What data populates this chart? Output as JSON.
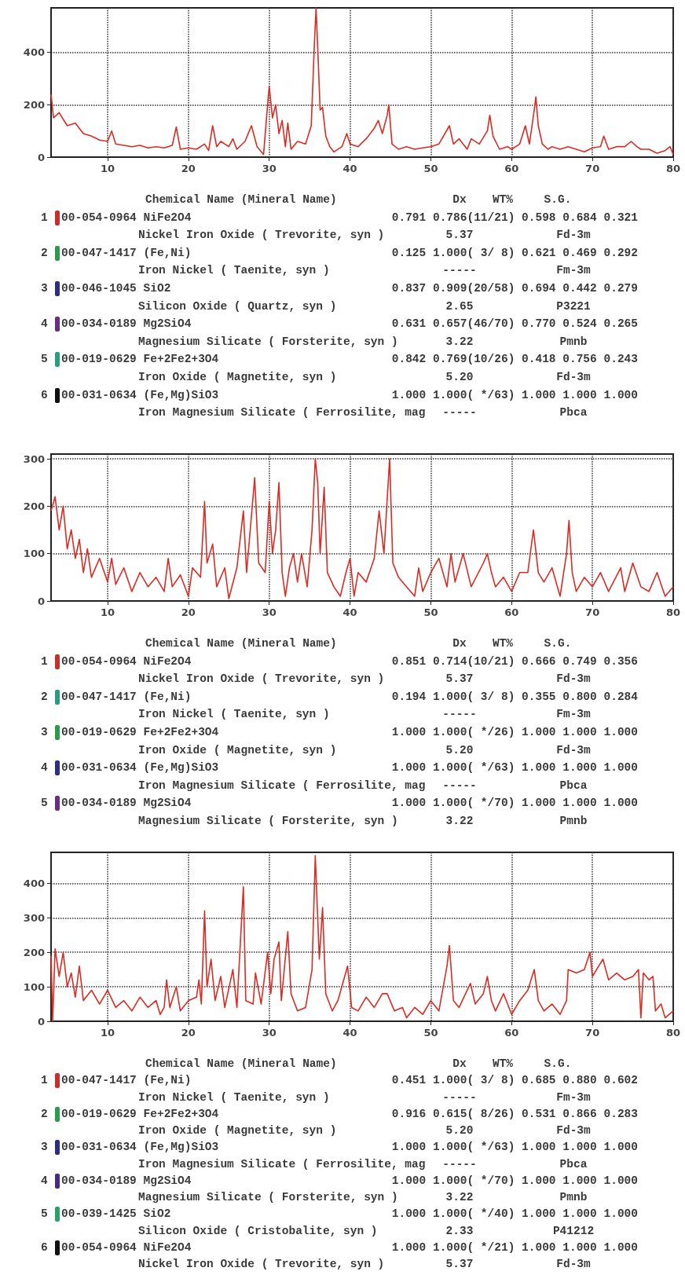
{
  "chart_data": [
    {
      "type": "line",
      "color": "#dd2a22",
      "grid": true,
      "xlim": [
        3,
        80
      ],
      "xticks": [
        10,
        20,
        30,
        40,
        50,
        60,
        70,
        80
      ],
      "ylim": [
        0,
        570
      ],
      "yticks": [
        0,
        200,
        400
      ],
      "x": [
        3,
        3.3,
        4,
        5,
        6,
        7,
        8,
        9,
        10,
        10.5,
        11,
        12,
        13,
        14,
        15,
        16,
        17,
        18,
        18.5,
        19,
        20,
        21,
        22,
        22.5,
        23,
        23.5,
        24,
        25,
        25.5,
        26,
        27,
        27.8,
        28.5,
        29.3,
        29.8,
        30,
        30.4,
        30.8,
        31.2,
        31.6,
        32,
        32.3,
        32.7,
        33.5,
        34.5,
        35.2,
        35.6,
        35.8,
        36,
        36.3,
        36.6,
        37,
        37.5,
        38,
        39,
        39.6,
        40,
        41,
        42,
        43,
        43.5,
        44,
        44.6,
        44.8,
        45.2,
        46,
        47,
        48,
        49,
        50,
        51,
        52.3,
        52.8,
        53.5,
        54.5,
        55,
        56,
        57,
        57.3,
        57.7,
        58.5,
        59.5,
        60,
        61,
        61.7,
        62.2,
        62.8,
        63,
        63.3,
        63.8,
        64.5,
        65,
        66,
        67,
        68,
        69,
        70,
        71,
        71.4,
        72,
        73,
        74,
        74.8,
        75.5,
        76,
        77,
        78,
        79,
        79.6,
        80
      ],
      "values": [
        240,
        150,
        170,
        120,
        130,
        90,
        80,
        65,
        60,
        100,
        50,
        45,
        40,
        45,
        35,
        40,
        35,
        45,
        115,
        30,
        35,
        30,
        50,
        25,
        120,
        40,
        60,
        40,
        70,
        30,
        60,
        120,
        40,
        10,
        200,
        270,
        150,
        200,
        90,
        140,
        40,
        130,
        30,
        60,
        50,
        120,
        440,
        570,
        420,
        180,
        190,
        80,
        40,
        20,
        40,
        90,
        50,
        40,
        70,
        110,
        140,
        90,
        160,
        200,
        50,
        30,
        40,
        30,
        35,
        40,
        50,
        120,
        50,
        70,
        30,
        70,
        50,
        100,
        160,
        80,
        30,
        40,
        30,
        50,
        120,
        50,
        180,
        230,
        120,
        50,
        30,
        40,
        30,
        40,
        30,
        20,
        35,
        40,
        80,
        30,
        40,
        40,
        60,
        40,
        30,
        30,
        15,
        25,
        40,
        10
      ]
    },
    {
      "type": "other",
      "colors": [
        "#c4302a",
        "#2a9a4c",
        "#2b2f7e",
        "#6b2d84",
        "#2a9d80",
        "#111111"
      ],
      "annotations": [
        "Chemical Name (Mineral Name)  Dx  WT%  S.G.",
        "1  00-054-0964 NiFe2O4  0.791 0.786(11/21) 0.598 0.684 0.321",
        "Nickel Iron Oxide ( Trevorite, syn )  5.37  Fd-3m",
        "2  00-047-1417 (Fe,Ni)  0.125 1.000( 3/ 8) 0.621 0.469 0.292",
        "Iron Nickel ( Taenite, syn )  -----  Fm-3m",
        "3  00-046-1045 SiO2  0.837 0.909(20/58) 0.694 0.442 0.279",
        "Silicon Oxide ( Quartz, syn )  2.65  P3221",
        "4  00-034-0189 Mg2SiO4  0.631 0.657(46/70) 0.770 0.524 0.265",
        "Magnesium Silicate ( Forsterite, syn )  3.22  Pmnb",
        "5  00-019-0629 Fe+2Fe2+3O4  0.842 0.769(10/26) 0.418 0.756 0.243",
        "Iron Oxide ( Magnetite, syn )  5.20  Fd-3m",
        "6  00-031-0634 (Fe,Mg)SiO3  1.000 1.000( */63) 1.000 1.000 1.000",
        "Iron Magnesium Silicate ( Ferrosilite, mag  -----  Pbca"
      ]
    },
    {
      "type": "line",
      "color": "#dd2a22",
      "grid": true,
      "xlim": [
        3,
        80
      ],
      "xticks": [
        10,
        20,
        30,
        40,
        50,
        60,
        70,
        80
      ],
      "ylim": [
        0,
        310
      ],
      "yticks": [
        0,
        100,
        200,
        300
      ],
      "x": [
        3,
        3.5,
        4,
        4.5,
        5,
        5.5,
        6,
        6.5,
        7,
        7.5,
        8,
        9,
        10,
        10.5,
        11,
        12,
        13,
        14,
        15,
        16,
        17,
        17.5,
        18,
        19,
        20,
        20.5,
        21.5,
        22,
        22.3,
        23,
        23.5,
        24.5,
        25,
        26,
        26.8,
        27.2,
        28.2,
        28.7,
        29.5,
        30,
        30.4,
        30.8,
        31.2,
        31.6,
        32,
        32.5,
        33,
        33.5,
        34,
        34.7,
        35.3,
        35.7,
        36,
        36.3,
        36.8,
        37.2,
        38,
        38.8,
        39.5,
        40,
        40.5,
        41,
        42,
        43,
        43.6,
        44.2,
        44.9,
        45.3,
        46,
        47,
        48,
        48.5,
        49,
        50,
        51,
        52,
        52.5,
        53,
        54,
        55,
        56.5,
        57,
        57.5,
        58,
        59,
        60,
        61,
        62,
        62.7,
        63.3,
        64,
        65,
        66,
        66.8,
        67.1,
        67.5,
        68,
        69,
        70,
        71,
        72,
        73.5,
        74,
        75,
        76,
        77,
        78,
        79,
        80
      ],
      "values": [
        190,
        220,
        150,
        200,
        110,
        150,
        90,
        130,
        60,
        110,
        50,
        90,
        40,
        90,
        35,
        70,
        20,
        60,
        30,
        50,
        20,
        90,
        30,
        55,
        10,
        70,
        50,
        210,
        80,
        120,
        30,
        70,
        5,
        70,
        190,
        60,
        260,
        80,
        60,
        210,
        100,
        150,
        250,
        60,
        10,
        70,
        100,
        40,
        100,
        30,
        150,
        300,
        250,
        100,
        240,
        60,
        30,
        10,
        60,
        90,
        10,
        60,
        40,
        90,
        190,
        100,
        300,
        80,
        50,
        30,
        10,
        70,
        20,
        60,
        90,
        30,
        100,
        40,
        100,
        30,
        80,
        100,
        60,
        30,
        50,
        20,
        60,
        60,
        150,
        60,
        40,
        70,
        10,
        100,
        170,
        60,
        20,
        50,
        30,
        60,
        20,
        70,
        20,
        80,
        30,
        20,
        60,
        10,
        30
      ]
    },
    {
      "type": "other",
      "colors": [
        "#c4302a",
        "#2a9d80",
        "#2a9a4c",
        "#2b2f7e",
        "#6b2d84"
      ],
      "annotations": [
        "Chemical Name (Mineral Name)  Dx  WT%  S.G.",
        "1  00-054-0964 NiFe2O4  0.851 0.714(10/21) 0.666 0.749 0.356",
        "Nickel Iron Oxide ( Trevorite, syn )  5.37  Fd-3m",
        "2  00-047-1417 (Fe,Ni)  0.194 1.000( 3/ 8) 0.355 0.800 0.284",
        "Iron Nickel ( Taenite, syn )  -----  Fm-3m",
        "3  00-019-0629 Fe+2Fe2+3O4  1.000 1.000( */26) 1.000 1.000 1.000",
        "Iron Oxide ( Magnetite, syn )  5.20  Fd-3m",
        "4  00-031-0634 (Fe,Mg)SiO3  1.000 1.000( */63) 1.000 1.000 1.000",
        "Iron Magnesium Silicate ( Ferrosilite, mag  -----  Pbca",
        "5  00-034-0189 Mg2SiO4  1.000 1.000( */70) 1.000 1.000 1.000",
        "Magnesium Silicate ( Forsterite, syn )  3.22  Pmnb"
      ]
    },
    {
      "type": "line",
      "color": "#dd2a22",
      "grid": true,
      "xlim": [
        3,
        80
      ],
      "xticks": [
        10,
        20,
        30,
        40,
        50,
        60,
        70,
        80
      ],
      "ylim": [
        0,
        490
      ],
      "yticks": [
        0,
        100,
        200,
        300,
        400
      ],
      "x": [
        3,
        3.2,
        3.5,
        4,
        4.5,
        5,
        5.5,
        6,
        6.5,
        7,
        8,
        9,
        10,
        11,
        12,
        13,
        14,
        15,
        16,
        16.5,
        17,
        17.3,
        17.7,
        18.5,
        19,
        20,
        21,
        21.3,
        21.6,
        22,
        22.3,
        22.8,
        23.3,
        24,
        24.5,
        25.5,
        26,
        26.8,
        27.1,
        28,
        28.3,
        29,
        29.8,
        30.2,
        30.6,
        31.2,
        31.5,
        32.3,
        32.7,
        33.5,
        34.5,
        35.3,
        35.7,
        36,
        36.2,
        36.6,
        37,
        37.8,
        38.5,
        39.7,
        40.2,
        41,
        42,
        43,
        44,
        44.6,
        45.5,
        46.5,
        47,
        48,
        49,
        50,
        51,
        52,
        52.3,
        52.8,
        53.5,
        54.9,
        55.5,
        56.5,
        57,
        57.5,
        58,
        59,
        60,
        61,
        62,
        62.8,
        63.3,
        64,
        65,
        66,
        66.8,
        67,
        68,
        69,
        69.7,
        70,
        71.3,
        72,
        73,
        74,
        75,
        75.7,
        76,
        76.3,
        77,
        77.5,
        77.8,
        78.5,
        79,
        80
      ],
      "values": [
        190,
        0,
        210,
        130,
        200,
        100,
        140,
        70,
        160,
        60,
        90,
        50,
        90,
        40,
        60,
        30,
        70,
        40,
        60,
        20,
        40,
        120,
        40,
        100,
        30,
        60,
        70,
        120,
        50,
        320,
        100,
        180,
        60,
        130,
        40,
        150,
        40,
        390,
        60,
        50,
        140,
        50,
        200,
        80,
        180,
        230,
        60,
        260,
        80,
        30,
        40,
        150,
        480,
        300,
        180,
        330,
        80,
        30,
        60,
        160,
        40,
        30,
        70,
        40,
        80,
        80,
        30,
        40,
        10,
        40,
        20,
        60,
        30,
        160,
        220,
        60,
        40,
        110,
        50,
        80,
        130,
        60,
        30,
        80,
        20,
        60,
        90,
        150,
        60,
        30,
        50,
        20,
        60,
        150,
        140,
        150,
        200,
        130,
        180,
        120,
        140,
        120,
        130,
        150,
        10,
        140,
        120,
        130,
        30,
        50,
        10,
        30
      ]
    },
    {
      "type": "other",
      "colors": [
        "#c4302a",
        "#2a9a4c",
        "#2b2f7e",
        "#4b2a7e",
        "#2aa06a",
        "#111111"
      ],
      "annotations": [
        "Chemical Name (Mineral Name)  Dx  WT%  S.G.",
        "1  00-047-1417 (Fe,Ni)  0.451 1.000( 3/ 8) 0.685 0.880 0.602",
        "Iron Nickel ( Taenite, syn )  -----  Fm-3m",
        "2  00-019-0629 Fe+2Fe2+3O4  0.916 0.615( 8/26) 0.531 0.866 0.283",
        "Iron Oxide ( Magnetite, syn )  5.20  Fd-3m",
        "3  00-031-0634 (Fe,Mg)SiO3  1.000 1.000( */63) 1.000 1.000 1.000",
        "Iron Magnesium Silicate ( Ferrosilite, mag  -----  Pbca",
        "4  00-034-0189 Mg2SiO4  1.000 1.000( */70) 1.000 1.000 1.000",
        "Magnesium Silicate ( Forsterite, syn )  3.22  Pmnb",
        "5  00-039-1425 SiO2  1.000 1.000( */40) 1.000 1.000 1.000",
        "Silicon Oxide ( Cristobalite, syn )  2.33  P41212",
        "6  00-054-0964 NiFe2O4  1.000 1.000( */21) 1.000 1.000 1.000",
        "Nickel Iron Oxide ( Trevorite, syn )  5.37  Fd-3m"
      ]
    }
  ]
}
